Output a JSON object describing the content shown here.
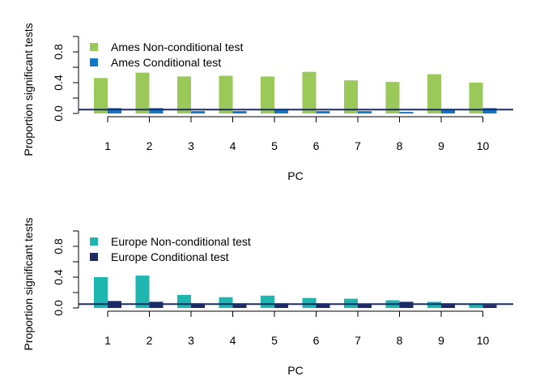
{
  "chart_data": [
    {
      "type": "bar",
      "xlabel": "PC",
      "ylabel": "Proportion significant tests",
      "categories": [
        "1",
        "2",
        "3",
        "4",
        "5",
        "6",
        "7",
        "8",
        "9",
        "10"
      ],
      "ylim": [
        0,
        1
      ],
      "yticks": [
        0.0,
        0.4,
        0.8
      ],
      "ytick_labels": [
        "0.0",
        "0.4",
        "0.8"
      ],
      "reference_line": 0.05,
      "legend_position": "top-left",
      "grid": false,
      "series": [
        {
          "name": "Ames Non-conditional test",
          "color": "#9AC95A",
          "values": [
            0.46,
            0.53,
            0.48,
            0.49,
            0.48,
            0.54,
            0.43,
            0.41,
            0.51,
            0.4
          ]
        },
        {
          "name": "Ames Conditional test",
          "color": "#1178C8",
          "values": [
            0.07,
            0.07,
            0.03,
            0.03,
            0.06,
            0.03,
            0.03,
            0.02,
            0.05,
            0.07
          ]
        }
      ]
    },
    {
      "type": "bar",
      "xlabel": "PC",
      "ylabel": "Proportion significant tests",
      "categories": [
        "1",
        "2",
        "3",
        "4",
        "5",
        "6",
        "7",
        "8",
        "9",
        "10"
      ],
      "ylim": [
        0,
        1
      ],
      "yticks": [
        0.0,
        0.4,
        0.8
      ],
      "ytick_labels": [
        "0.0",
        "0.4",
        "0.8"
      ],
      "reference_line": 0.05,
      "legend_position": "top-left",
      "grid": false,
      "series": [
        {
          "name": "Europe Non-conditional test",
          "color": "#1FB6B0",
          "values": [
            0.4,
            0.42,
            0.17,
            0.14,
            0.16,
            0.13,
            0.12,
            0.1,
            0.08,
            0.06
          ]
        },
        {
          "name": "Europe Conditional test",
          "color": "#1C2B68",
          "values": [
            0.09,
            0.08,
            0.06,
            0.06,
            0.06,
            0.06,
            0.05,
            0.08,
            0.06,
            0.04
          ]
        }
      ]
    }
  ]
}
